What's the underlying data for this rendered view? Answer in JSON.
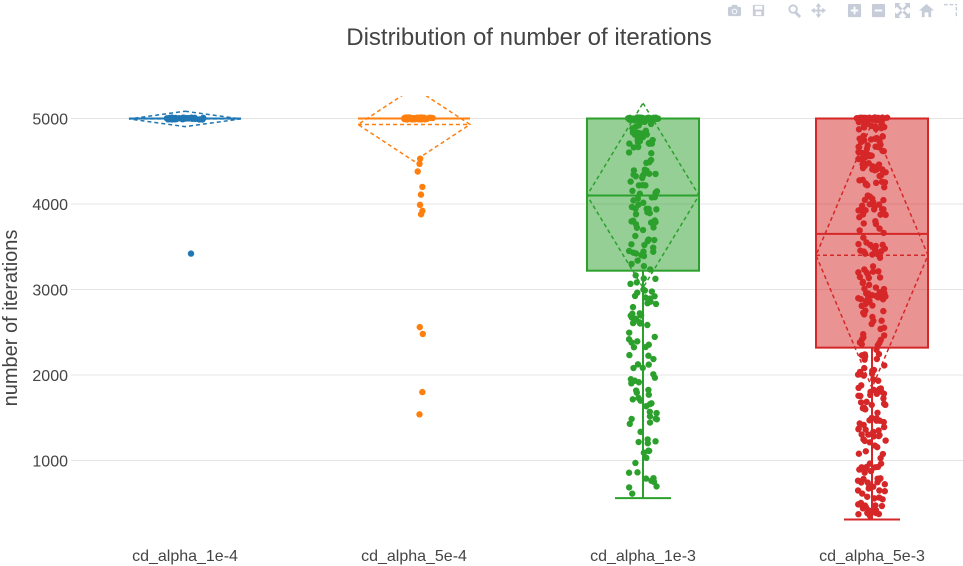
{
  "modebar": {
    "buttons": [
      "camera-icon",
      "save-icon",
      "zoom-icon",
      "pan-icon",
      "zoom-in-icon",
      "zoom-out-icon",
      "autoscale-icon",
      "home-icon",
      "spikelines-icon"
    ]
  },
  "chart_data": {
    "type": "box",
    "title": "Distribution of number of iterations",
    "xlabel": "",
    "ylabel": "number of iterations",
    "ylim": [
      250,
      5250
    ],
    "yticks": [
      1000,
      2000,
      3000,
      4000,
      5000
    ],
    "grid": true,
    "boxmean": "sd",
    "points": "all",
    "categories": [
      "cd_alpha_1e-4",
      "cd_alpha_5e-4",
      "cd_alpha_1e-3",
      "cd_alpha_5e-3"
    ],
    "series": [
      {
        "color": "#1f77b4",
        "stats": {
          "q1": 5000,
          "median": 5000,
          "q3": 5000,
          "lowerfence": 5000,
          "upperfence": 5000,
          "mean": 4995,
          "sd": 90
        },
        "outliers": [
          3420
        ]
      },
      {
        "color": "#ff7f0e",
        "stats": {
          "q1": 5000,
          "median": 5000,
          "q3": 5000,
          "lowerfence": 5000,
          "upperfence": 5000,
          "mean": 4930,
          "sd": 430
        },
        "outliers": [
          4530,
          4470,
          4380,
          4200,
          4110,
          3990,
          3920,
          3880,
          2560,
          2480,
          1800,
          1540
        ]
      },
      {
        "color": "#2ca02c",
        "stats": {
          "q1": 3220,
          "median": 4100,
          "q3": 5000,
          "lowerfence": 560,
          "upperfence": 5000,
          "mean": 4100,
          "sd": 1080
        },
        "outliers": []
      },
      {
        "color": "#d62728",
        "stats": {
          "q1": 2320,
          "median": 3650,
          "q3": 5000,
          "lowerfence": 310,
          "upperfence": 5000,
          "mean": 3400,
          "sd": 1550
        },
        "outliers": []
      }
    ]
  }
}
